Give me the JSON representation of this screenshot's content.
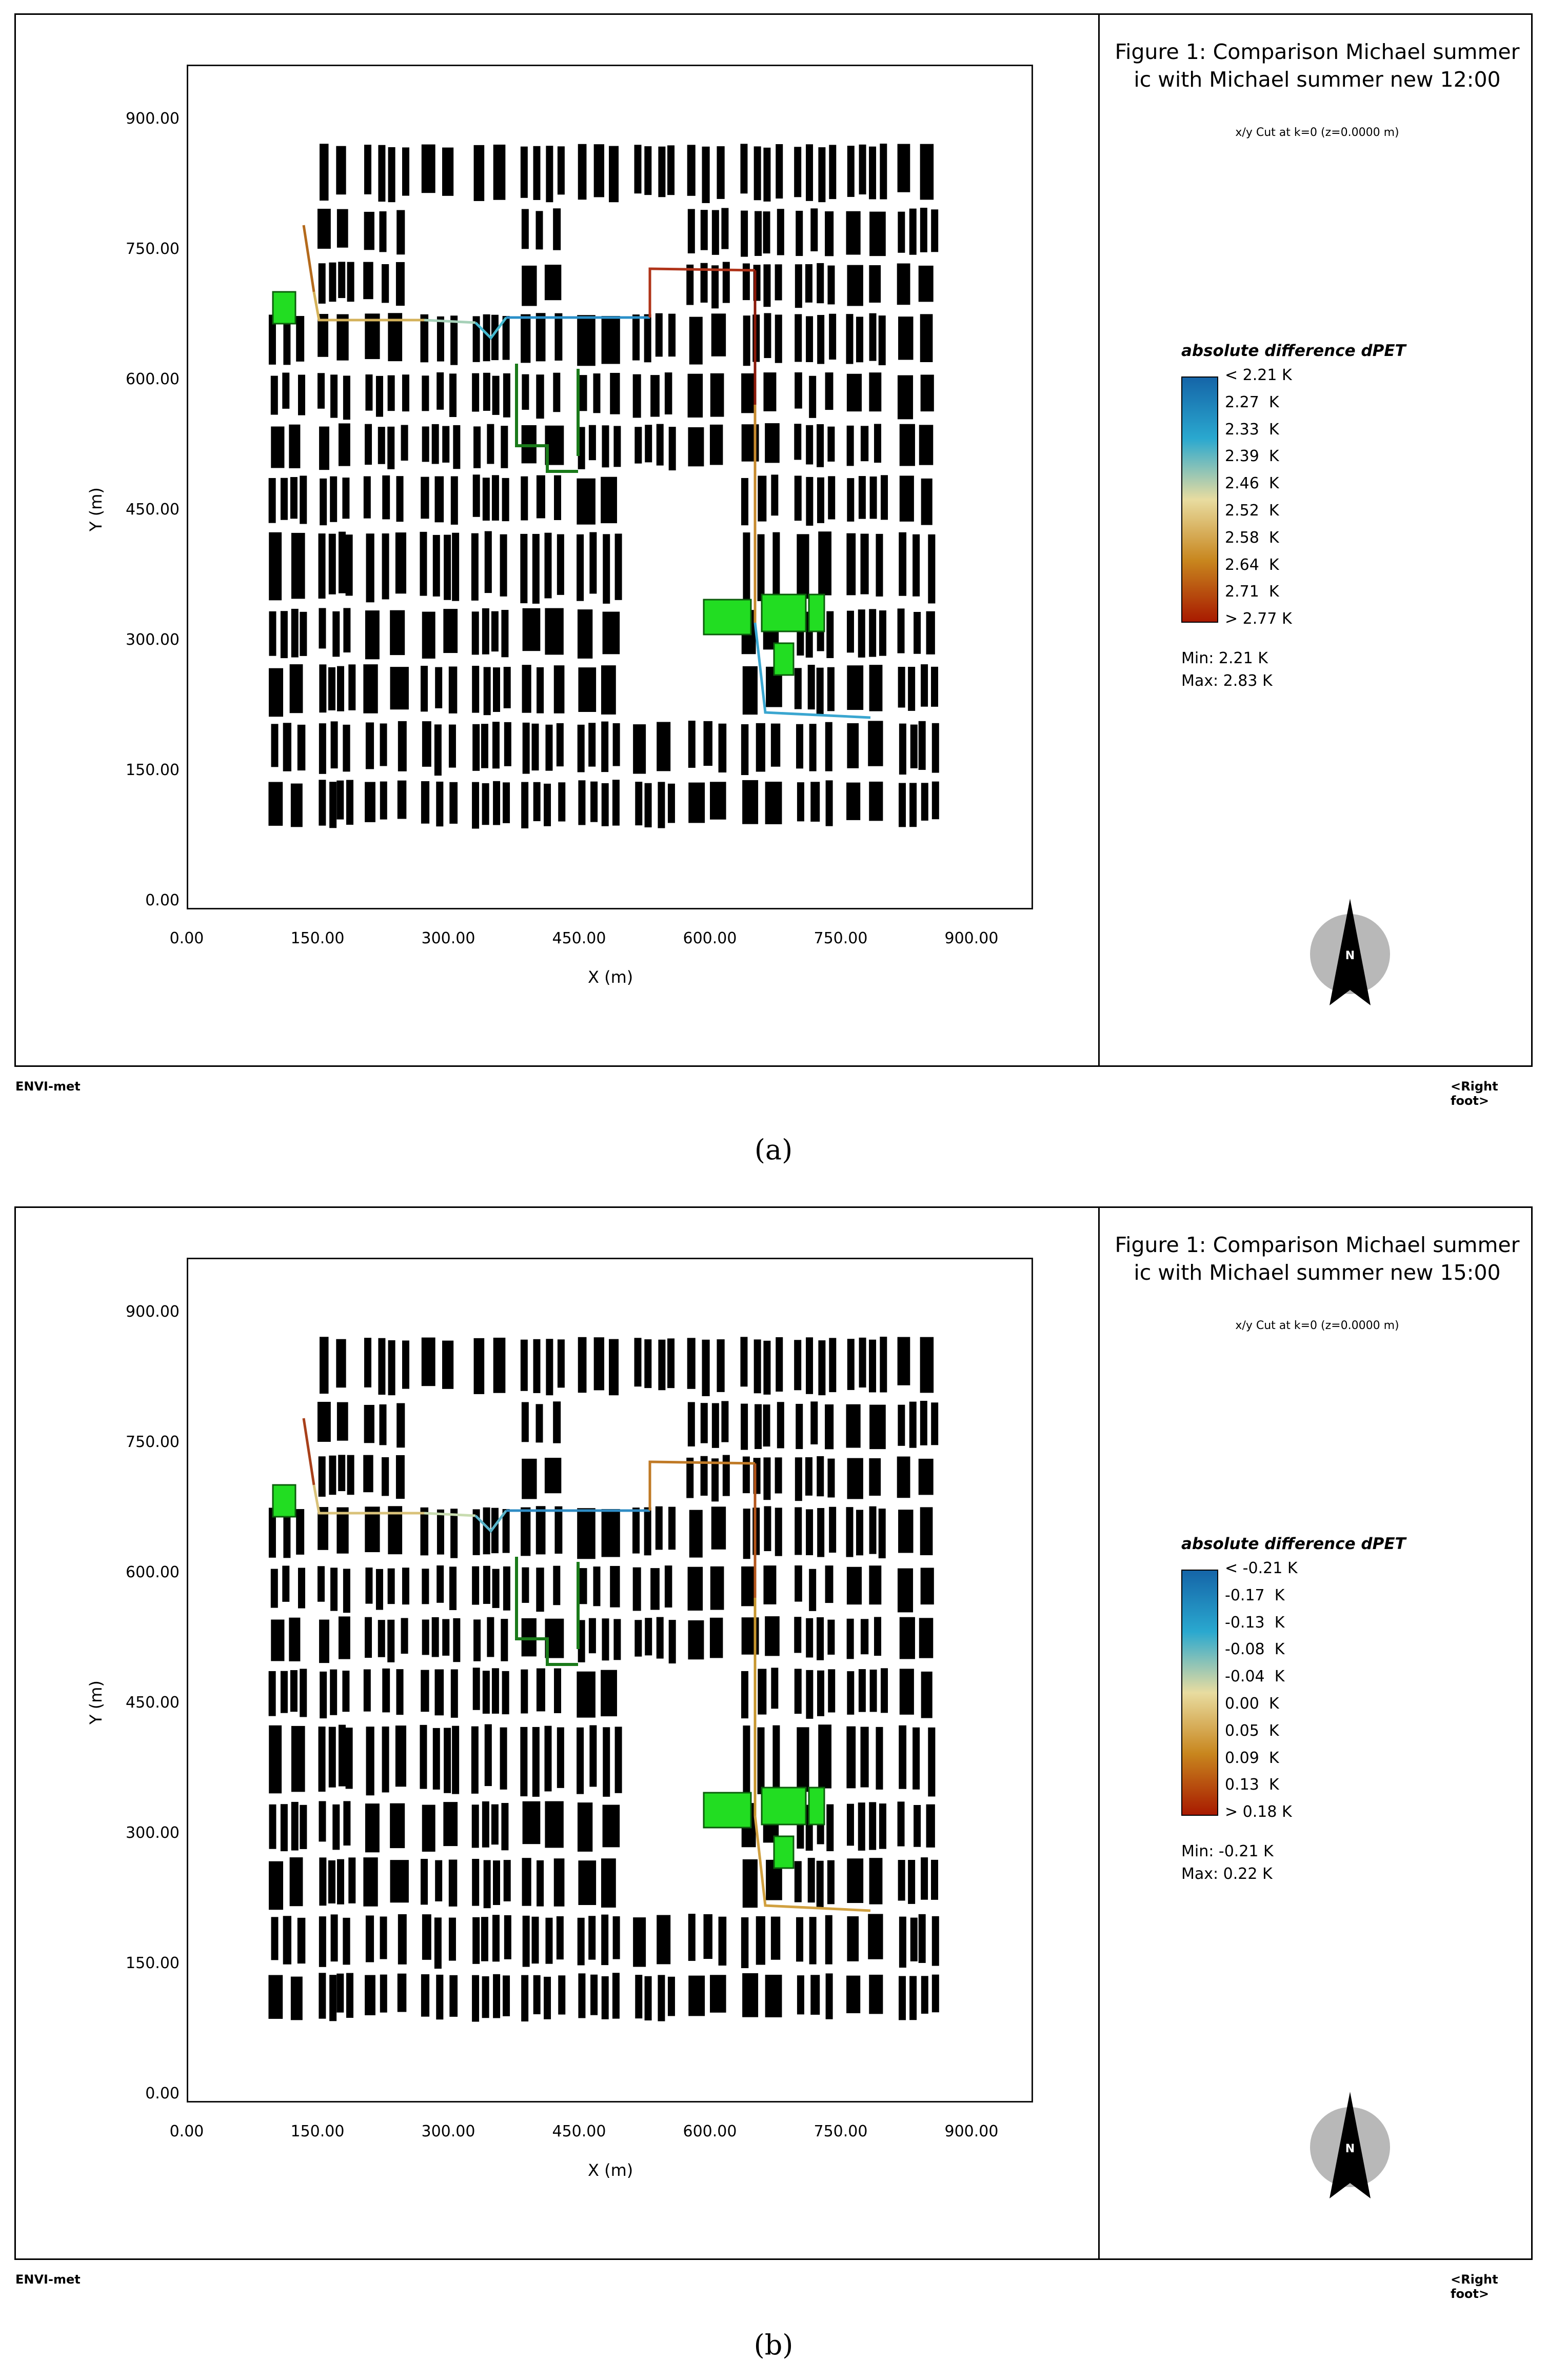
{
  "colors": {
    "building": "#000000",
    "vegetation_fill": "#22dd22",
    "vegetation_outline": "#1a7a1a",
    "colorbar_top": "#1565a8",
    "colorbar_mid": "#e8dca0",
    "colorbar_bottom": "#a81a00"
  },
  "panels": [
    {
      "title": "Figure 1: Comparison Michael summer ic with Michael summer new 12:00",
      "subtitle": "x/y Cut at k=0 (z=0.0000 m)",
      "legend_title": "absolute difference dPET",
      "legend_labels": [
        "< 2.21 K",
        "2.27  K",
        "2.33  K",
        "2.39  K",
        "2.46  K",
        "2.52  K",
        "2.58  K",
        "2.64  K",
        "2.71  K",
        "> 2.77 K"
      ],
      "min_label": "Min: 2.21 K",
      "max_label": "Max: 2.83 K",
      "xlabel": "X (m)",
      "ylabel": "Y (m)",
      "x_ticks": [
        "0.00",
        "150.00",
        "300.00",
        "450.00",
        "600.00",
        "750.00",
        "900.00"
      ],
      "y_ticks": [
        "900.00",
        "750.00",
        "600.00",
        "450.00",
        "300.00",
        "150.00",
        "0.00"
      ],
      "footer_left": "ENVI-met",
      "footer_right": "<Right foot>",
      "north_label": "N",
      "caption": "(a)",
      "route_colors": [
        "#b46a1c",
        "#d4b25a",
        "#a6d1b8",
        "#45b9cf",
        "#2a8fc8",
        "#b0341a",
        "#8b1a0a",
        "#c78a2e",
        "#3aa6d0"
      ]
    },
    {
      "title": "Figure 1: Comparison Michael summer ic with Michael summer new 15:00",
      "subtitle": "x/y Cut at k=0 (z=0.0000 m)",
      "legend_title": "absolute difference dPET",
      "legend_labels": [
        "< -0.21 K",
        "-0.17  K",
        "-0.13  K",
        "-0.08  K",
        "-0.04  K",
        "0.00  K",
        "0.05  K",
        "0.09  K",
        "0.13  K",
        "> 0.18 K"
      ],
      "min_label": "Min: -0.21 K",
      "max_label": "Max: 0.22 K",
      "xlabel": "X (m)",
      "ylabel": "Y (m)",
      "x_ticks": [
        "0.00",
        "150.00",
        "300.00",
        "450.00",
        "600.00",
        "750.00",
        "900.00"
      ],
      "y_ticks": [
        "900.00",
        "750.00",
        "600.00",
        "450.00",
        "300.00",
        "150.00",
        "0.00"
      ],
      "footer_left": "ENVI-met",
      "footer_right": "<Right foot>",
      "north_label": "N",
      "caption": "(b)",
      "route_colors": [
        "#a8401a",
        "#d9c27a",
        "#c8dcb0",
        "#5ab4c9",
        "#2f8cc4",
        "#c07a26",
        "#b3561c",
        "#c7962e",
        "#d0a040"
      ]
    }
  ]
}
